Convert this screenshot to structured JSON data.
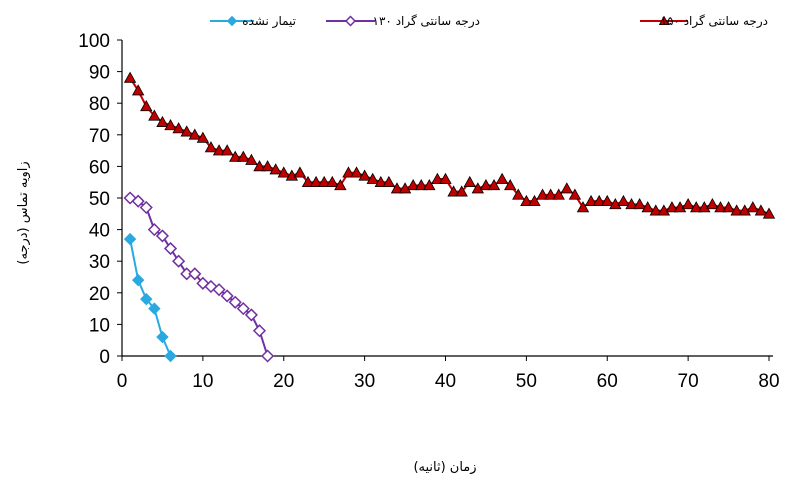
{
  "chart_data": {
    "type": "line",
    "xlabel": "زمان (ثانیه)",
    "ylabel": "زاویه تماس (درجه)",
    "xlim": [
      0,
      80
    ],
    "ylim": [
      0,
      100
    ],
    "xticks": [
      0,
      10,
      20,
      30,
      40,
      50,
      60,
      70,
      80
    ],
    "yticks": [
      0,
      10,
      20,
      30,
      40,
      50,
      60,
      70,
      80,
      90,
      100
    ],
    "grid": false,
    "legend_position": "top",
    "series": [
      {
        "name": "تیمار نشده",
        "color": "#29A9E0",
        "marker": "diamond-filled",
        "x": [
          1,
          2,
          3,
          4,
          5,
          6
        ],
        "y": [
          37,
          24,
          18,
          15,
          6,
          0
        ]
      },
      {
        "name": "۱۳۰ درجه سانتی گراد",
        "color": "#7030A0",
        "marker": "diamond-open",
        "x": [
          1,
          2,
          3,
          4,
          5,
          6,
          7,
          8,
          9,
          10,
          11,
          12,
          13,
          14,
          15,
          16,
          17,
          18
        ],
        "y": [
          50,
          49,
          47,
          40,
          38,
          34,
          30,
          26,
          26,
          23,
          22,
          21,
          19,
          17,
          15,
          13,
          8,
          0
        ]
      },
      {
        "name": "۱۵۰ درجه سانتی گراد",
        "color": "#C00000",
        "marker": "triangle",
        "x": [
          1,
          2,
          3,
          4,
          5,
          6,
          7,
          8,
          9,
          10,
          11,
          12,
          13,
          14,
          15,
          16,
          17,
          18,
          19,
          20,
          21,
          22,
          23,
          24,
          25,
          26,
          27,
          28,
          29,
          30,
          31,
          32,
          33,
          34,
          35,
          36,
          37,
          38,
          39,
          40,
          41,
          42,
          43,
          44,
          45,
          46,
          47,
          48,
          49,
          50,
          51,
          52,
          53,
          54,
          55,
          56,
          57,
          58,
          59,
          60,
          61,
          62,
          63,
          64,
          65,
          66,
          67,
          68,
          69,
          70,
          71,
          72,
          73,
          74,
          75,
          76,
          77,
          78,
          79,
          80
        ],
        "y": [
          88,
          84,
          79,
          76,
          74,
          73,
          72,
          71,
          70,
          69,
          66,
          65,
          65,
          63,
          63,
          62,
          60,
          60,
          59,
          58,
          57,
          58,
          55,
          55,
          55,
          55,
          54,
          58,
          58,
          57,
          56,
          55,
          55,
          53,
          53,
          54,
          54,
          54,
          56,
          56,
          52,
          52,
          55,
          53,
          54,
          54,
          56,
          54,
          51,
          49,
          49,
          51,
          51,
          51,
          53,
          51,
          47,
          49,
          49,
          49,
          48,
          49,
          48,
          48,
          47,
          46,
          46,
          47,
          47,
          48,
          47,
          47,
          48,
          47,
          47,
          46,
          46,
          47,
          46,
          45
        ]
      }
    ]
  }
}
